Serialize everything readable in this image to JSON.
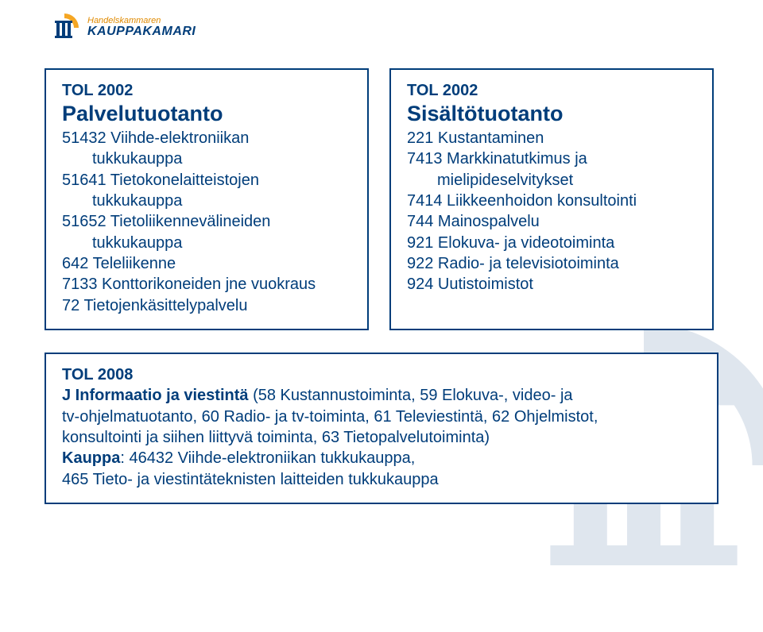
{
  "logo": {
    "line1": "Handelskammaren",
    "line2": "KAUPPAKAMARI"
  },
  "colors": {
    "border": "#003d7a",
    "text": "#003d7a",
    "orange": "#e08a00",
    "bg": "#ffffff"
  },
  "left": {
    "heading1": "TOL 2002",
    "heading2": "Palvelutuotanto",
    "items": [
      {
        "code": "51432 Viihde-elektroniikan",
        "sub": "tukkukauppa"
      },
      {
        "code": "51641 Tietokonelaitteistojen",
        "sub": "tukkukauppa"
      },
      {
        "code": "51652 Tietoliikennevälineiden",
        "sub": "tukkukauppa"
      },
      {
        "code": "642 Teleliikenne",
        "sub": ""
      },
      {
        "code": "7133 Konttorikoneiden jne vuokraus",
        "sub": ""
      },
      {
        "code": "72 Tietojenkäsittelypalvelu",
        "sub": ""
      }
    ]
  },
  "right": {
    "heading1": "TOL 2002",
    "heading2": "Sisältötuotanto",
    "items": [
      {
        "code": "221 Kustantaminen",
        "sub": ""
      },
      {
        "code": "7413 Markkinatutkimus ja",
        "sub": "mielipideselvitykset"
      },
      {
        "code": "7414 Liikkeenhoidon konsultointi",
        "sub": ""
      },
      {
        "code": "744 Mainospalvelu",
        "sub": ""
      },
      {
        "code": "921 Elokuva- ja videotoiminta",
        "sub": ""
      },
      {
        "code": "922 Radio- ja televisiotoiminta",
        "sub": ""
      },
      {
        "code": "924 Uutistoimistot",
        "sub": ""
      }
    ]
  },
  "bottom": {
    "heading": "TOL 2008",
    "line1_bold": "J Informaatio ja viestintä ",
    "line1_rest": "(58 Kustannustoiminta, 59 Elokuva-, video- ja",
    "line2": "tv-ohjelmatuotanto, 60 Radio- ja tv-toiminta, 61 Televiestintä, 62 Ohjelmistot,",
    "line3": "konsultointi ja siihen liittyvä toiminta, 63 Tietopalvelutoiminta)",
    "line4_bold": "Kauppa",
    "line4_rest": ": 46432 Viihde-elektroniikan tukkukauppa,",
    "line5": "465 Tieto- ja viestintäteknisten laitteiden tukkukauppa"
  }
}
